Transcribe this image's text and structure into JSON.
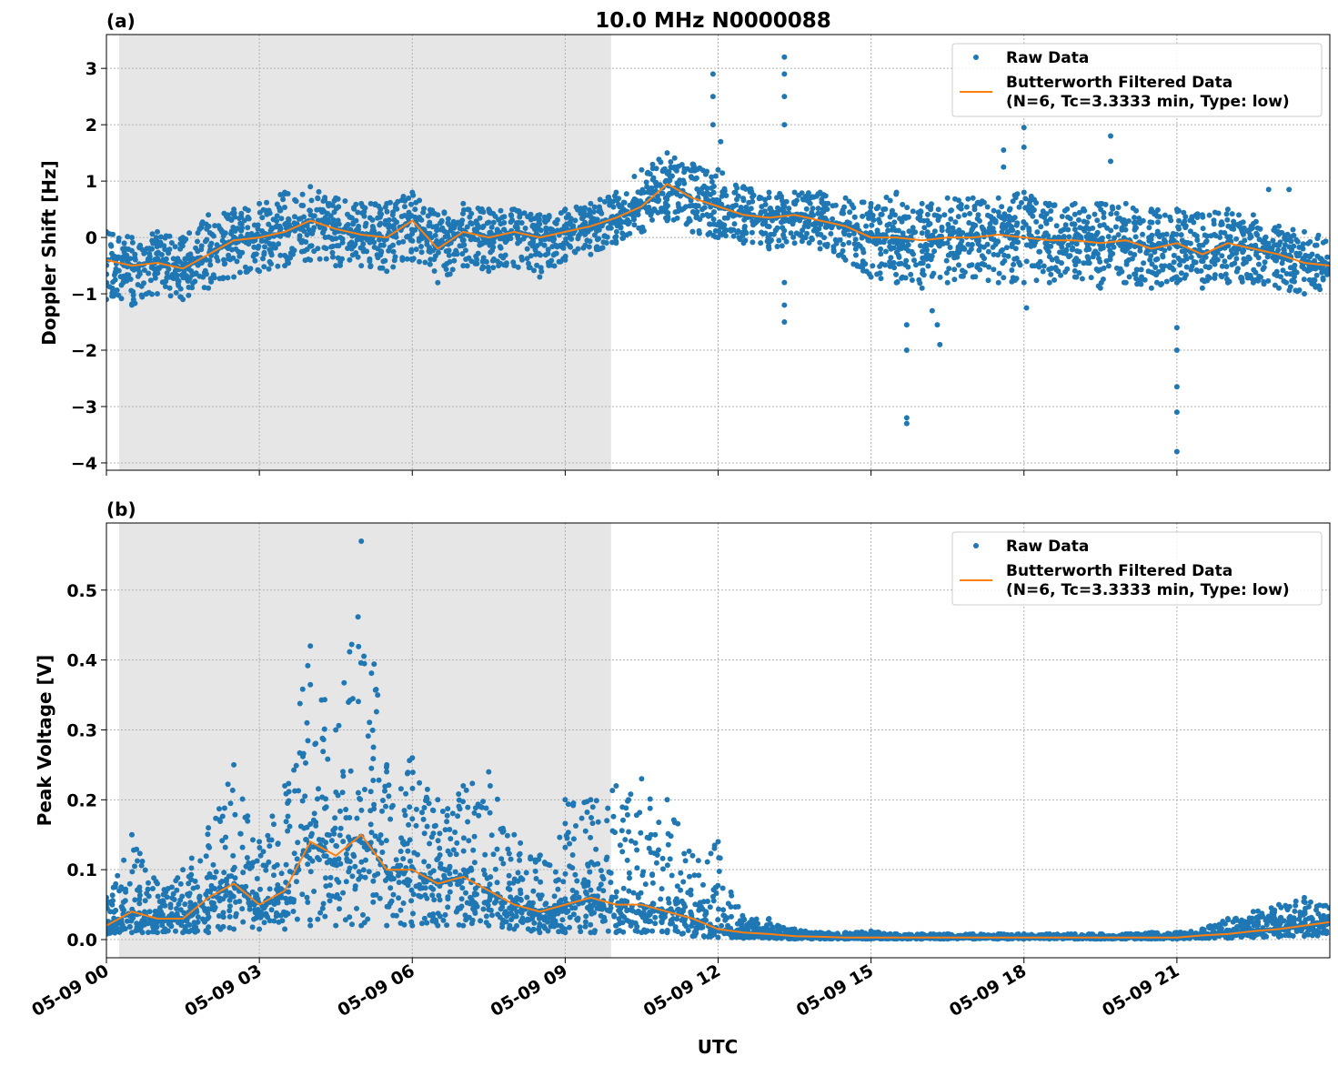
{
  "chart_data": [
    {
      "type": "scatter",
      "panel_label": "(a)",
      "title": "10.0 MHz N0000088",
      "xlabel": "",
      "ylabel": "Doppler Shift [Hz]",
      "ylim": [
        -4.13,
        3.6
      ],
      "yticks": [
        "3",
        "2",
        "1",
        "0",
        "−1",
        "−2",
        "−3",
        "−4"
      ],
      "ytick_values": [
        3,
        2,
        1,
        0,
        -1,
        -2,
        -3,
        -4
      ],
      "grid": true,
      "legend_position": "top-right",
      "shaded_interval_hours": [
        0.25,
        9.9
      ],
      "x_hours": [
        0,
        0.5,
        1,
        1.5,
        2,
        2.5,
        3,
        3.5,
        4,
        4.5,
        5,
        5.5,
        6,
        6.5,
        7,
        7.5,
        8,
        8.5,
        9,
        9.5,
        10,
        10.5,
        11,
        11.5,
        12,
        12.5,
        13,
        13.5,
        14,
        14.5,
        15,
        15.5,
        16,
        16.5,
        17,
        17.5,
        18,
        18.5,
        19,
        19.5,
        20,
        20.5,
        21,
        21.5,
        22,
        22.5,
        23,
        23.5,
        24
      ],
      "series": [
        {
          "name": "Butterworth Filtered Data\n(N=6, Tc=3.3333 min, Type: low)",
          "kind": "line",
          "values": [
            -0.4,
            -0.5,
            -0.45,
            -0.55,
            -0.3,
            -0.05,
            0.0,
            0.1,
            0.3,
            0.15,
            0.05,
            0.0,
            0.3,
            -0.2,
            0.1,
            0.0,
            0.1,
            0.0,
            0.1,
            0.2,
            0.35,
            0.55,
            0.95,
            0.7,
            0.55,
            0.4,
            0.35,
            0.4,
            0.3,
            0.2,
            0.0,
            0.0,
            -0.05,
            0.0,
            0.0,
            0.05,
            0.0,
            -0.05,
            -0.05,
            -0.1,
            -0.05,
            -0.2,
            -0.1,
            -0.3,
            -0.1,
            -0.2,
            -0.3,
            -0.45,
            -0.5
          ]
        },
        {
          "name": "Raw Data",
          "kind": "scatter",
          "min": [
            -1.1,
            -1.2,
            -1.0,
            -1.1,
            -0.9,
            -0.7,
            -0.6,
            -0.5,
            -0.4,
            -0.5,
            -0.5,
            -0.6,
            -0.4,
            -0.8,
            -0.5,
            -0.6,
            -0.5,
            -0.7,
            -0.4,
            -0.3,
            -0.1,
            0.1,
            0.3,
            0.1,
            0.0,
            -0.1,
            -0.2,
            -0.1,
            -0.2,
            -0.4,
            -0.7,
            -0.8,
            -0.9,
            -0.8,
            -0.7,
            -0.8,
            -0.8,
            -0.8,
            -0.7,
            -0.9,
            -0.8,
            -0.9,
            -0.8,
            -0.9,
            -0.8,
            -0.8,
            -0.9,
            -1.0,
            -0.9
          ],
          "max": [
            0.1,
            0.0,
            0.1,
            0.0,
            0.4,
            0.5,
            0.6,
            0.8,
            0.9,
            0.7,
            0.6,
            0.6,
            0.8,
            0.4,
            0.6,
            0.5,
            0.5,
            0.4,
            0.5,
            0.6,
            0.8,
            1.2,
            1.5,
            1.3,
            1.2,
            0.9,
            0.8,
            0.8,
            0.8,
            0.7,
            0.6,
            0.8,
            0.6,
            0.7,
            0.7,
            0.7,
            0.8,
            0.6,
            0.6,
            0.6,
            0.6,
            0.5,
            0.5,
            0.4,
            0.5,
            0.4,
            0.2,
            0.1,
            0.0
          ],
          "outliers": [
            [
              11.9,
              2.9
            ],
            [
              11.9,
              2.5
            ],
            [
              11.9,
              2.0
            ],
            [
              12.05,
              1.7
            ],
            [
              13.3,
              3.2
            ],
            [
              13.3,
              2.9
            ],
            [
              13.3,
              2.5
            ],
            [
              13.3,
              2.0
            ],
            [
              13.3,
              -0.8
            ],
            [
              13.3,
              -1.2
            ],
            [
              13.3,
              -1.5
            ],
            [
              15.7,
              -3.3
            ],
            [
              15.7,
              -3.2
            ],
            [
              15.7,
              -2.0
            ],
            [
              15.7,
              -1.55
            ],
            [
              16.3,
              -1.55
            ],
            [
              16.35,
              -1.9
            ],
            [
              16.2,
              -1.3
            ],
            [
              17.6,
              1.55
            ],
            [
              17.6,
              1.25
            ],
            [
              18.0,
              1.95
            ],
            [
              18.0,
              1.6
            ],
            [
              18.05,
              -1.25
            ],
            [
              19.7,
              1.8
            ],
            [
              19.7,
              1.35
            ],
            [
              21.0,
              -3.8
            ],
            [
              21.0,
              -3.1
            ],
            [
              21.0,
              -2.65
            ],
            [
              21.0,
              -2.0
            ],
            [
              21.0,
              -1.6
            ],
            [
              22.8,
              0.85
            ],
            [
              23.2,
              0.85
            ]
          ]
        }
      ]
    },
    {
      "type": "scatter",
      "panel_label": "(b)",
      "title": "",
      "xlabel": "UTC",
      "ylabel": "Peak Voltage [V]",
      "ylim": [
        -0.026,
        0.596
      ],
      "yticks": [
        "0.0",
        "0.1",
        "0.2",
        "0.3",
        "0.4",
        "0.5"
      ],
      "ytick_values": [
        0,
        0.1,
        0.2,
        0.3,
        0.4,
        0.5
      ],
      "xticks": [
        "05-09 00",
        "05-09 03",
        "05-09 06",
        "05-09 09",
        "05-09 12",
        "05-09 15",
        "05-09 18",
        "05-09 21"
      ],
      "xtick_hours": [
        0,
        3,
        6,
        9,
        12,
        15,
        18,
        21
      ],
      "grid": true,
      "legend_position": "top-right",
      "shaded_interval_hours": [
        0.25,
        9.9
      ],
      "x_hours": [
        0,
        0.5,
        1,
        1.5,
        2,
        2.5,
        3,
        3.5,
        4,
        4.5,
        5,
        5.5,
        6,
        6.5,
        7,
        7.5,
        8,
        8.5,
        9,
        9.5,
        10,
        10.5,
        11,
        11.5,
        12,
        12.5,
        13,
        13.5,
        14,
        14.5,
        15,
        15.5,
        16,
        16.5,
        17,
        17.5,
        18,
        18.5,
        19,
        19.5,
        20,
        20.5,
        21,
        21.5,
        22,
        22.5,
        23,
        23.5,
        24
      ],
      "series": [
        {
          "name": "Butterworth Filtered Data\n(N=6, Tc=3.3333 min, Type: low)",
          "kind": "line",
          "values": [
            0.02,
            0.04,
            0.03,
            0.03,
            0.06,
            0.08,
            0.05,
            0.07,
            0.14,
            0.12,
            0.15,
            0.1,
            0.1,
            0.08,
            0.09,
            0.07,
            0.05,
            0.04,
            0.05,
            0.06,
            0.05,
            0.05,
            0.04,
            0.03,
            0.015,
            0.01,
            0.008,
            0.005,
            0.004,
            0.003,
            0.003,
            0.003,
            0.003,
            0.003,
            0.003,
            0.003,
            0.003,
            0.003,
            0.003,
            0.003,
            0.003,
            0.003,
            0.003,
            0.006,
            0.008,
            0.012,
            0.015,
            0.02,
            0.025
          ]
        },
        {
          "name": "Raw Data",
          "kind": "scatter",
          "min": [
            0.008,
            0.01,
            0.01,
            0.01,
            0.01,
            0.015,
            0.015,
            0.015,
            0.02,
            0.02,
            0.02,
            0.02,
            0.02,
            0.02,
            0.02,
            0.02,
            0.015,
            0.01,
            0.01,
            0.01,
            0.01,
            0.01,
            0.01,
            0.005,
            0.003,
            0.002,
            0.002,
            0.001,
            0.001,
            0.001,
            0.001,
            0.001,
            0.001,
            0.001,
            0.001,
            0.001,
            0.001,
            0.001,
            0.001,
            0.001,
            0.001,
            0.001,
            0.001,
            0.002,
            0.002,
            0.003,
            0.004,
            0.005,
            0.006
          ],
          "max": [
            0.06,
            0.15,
            0.08,
            0.1,
            0.16,
            0.25,
            0.14,
            0.22,
            0.42,
            0.3,
            0.57,
            0.25,
            0.26,
            0.2,
            0.22,
            0.24,
            0.15,
            0.12,
            0.2,
            0.2,
            0.22,
            0.23,
            0.2,
            0.12,
            0.14,
            0.03,
            0.03,
            0.015,
            0.01,
            0.01,
            0.012,
            0.008,
            0.008,
            0.008,
            0.008,
            0.008,
            0.008,
            0.008,
            0.008,
            0.008,
            0.008,
            0.01,
            0.01,
            0.015,
            0.03,
            0.04,
            0.05,
            0.06,
            0.05
          ]
        }
      ]
    }
  ],
  "legend": {
    "raw_label": "Raw Data",
    "filtered_label_line1": "Butterworth Filtered Data",
    "filtered_label_line2": "(N=6, Tc=3.3333 min, Type: low)"
  },
  "colors": {
    "raw": "#1f77b4",
    "filtered": "#ff7f0e",
    "shade": "#e6e6e6",
    "grid": "#b0b0b0"
  }
}
